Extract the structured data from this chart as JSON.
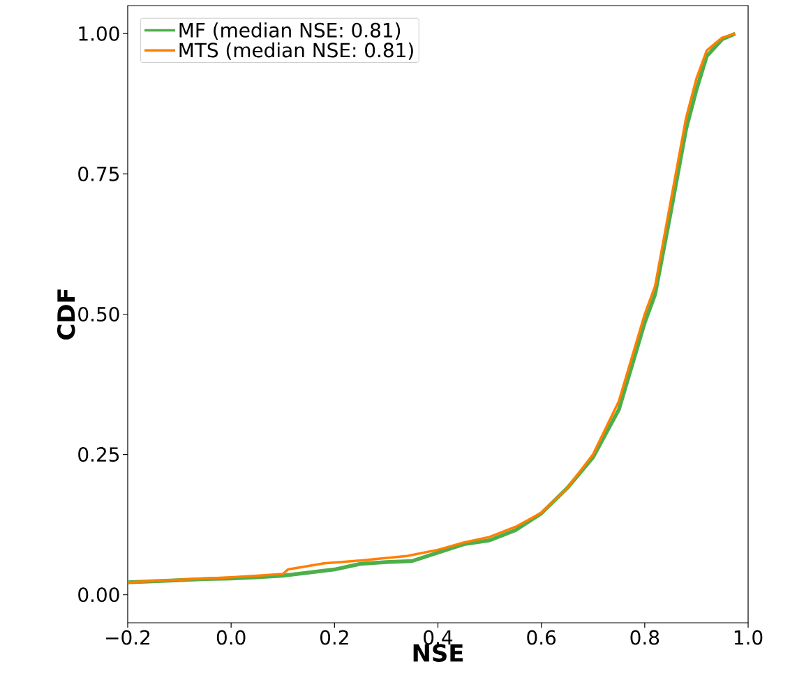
{
  "chart_data": {
    "type": "line",
    "xlabel": "NSE",
    "ylabel": "CDF",
    "xlim": [
      -0.2,
      1.0
    ],
    "ylim": [
      -0.05,
      1.05
    ],
    "xticks": [
      {
        "value": -0.2,
        "label": "−0.2"
      },
      {
        "value": 0.0,
        "label": "0.0"
      },
      {
        "value": 0.2,
        "label": "0.2"
      },
      {
        "value": 0.4,
        "label": "0.4"
      },
      {
        "value": 0.6,
        "label": "0.6"
      },
      {
        "value": 0.8,
        "label": "0.8"
      },
      {
        "value": 1.0,
        "label": "1.0"
      }
    ],
    "yticks": [
      {
        "value": 0,
        "label": "0.00"
      },
      {
        "value": 0.25,
        "label": "0.25"
      },
      {
        "value": 0.5,
        "label": "0.50"
      },
      {
        "value": 0.75,
        "label": "0.75"
      },
      {
        "value": 1.0,
        "label": "1.00"
      }
    ],
    "legend": "top left",
    "grid": false,
    "marker": "none",
    "line_style": "solid",
    "series": [
      {
        "name": "MF (median NSE: 0.81)",
        "color": "#4daf4a",
        "x": [
          -0.2,
          -0.05,
          0.0,
          0.05,
          0.1,
          0.2,
          0.25,
          0.3,
          0.35,
          0.4,
          0.45,
          0.5,
          0.55,
          0.6,
          0.65,
          0.7,
          0.75,
          0.8,
          0.82,
          0.85,
          0.88,
          0.9,
          0.92,
          0.95,
          0.975
        ],
        "values": [
          0.022,
          0.028,
          0.029,
          0.031,
          0.034,
          0.045,
          0.055,
          0.058,
          0.06,
          0.075,
          0.09,
          0.097,
          0.115,
          0.145,
          0.19,
          0.245,
          0.33,
          0.485,
          0.535,
          0.68,
          0.83,
          0.9,
          0.96,
          0.99,
          1.0
        ]
      },
      {
        "name": "MTS (median NSE: 0.81)",
        "color": "#ff7f00",
        "x": [
          -0.2,
          -0.05,
          0.0,
          0.05,
          0.1,
          0.11,
          0.18,
          0.25,
          0.34,
          0.4,
          0.45,
          0.5,
          0.55,
          0.6,
          0.65,
          0.7,
          0.75,
          0.8,
          0.82,
          0.85,
          0.88,
          0.9,
          0.92,
          0.95,
          0.975
        ],
        "values": [
          0.022,
          0.029,
          0.031,
          0.034,
          0.037,
          0.045,
          0.056,
          0.061,
          0.069,
          0.08,
          0.093,
          0.103,
          0.121,
          0.146,
          0.19,
          0.25,
          0.345,
          0.5,
          0.55,
          0.7,
          0.85,
          0.92,
          0.97,
          0.993,
          1.0
        ]
      }
    ]
  }
}
